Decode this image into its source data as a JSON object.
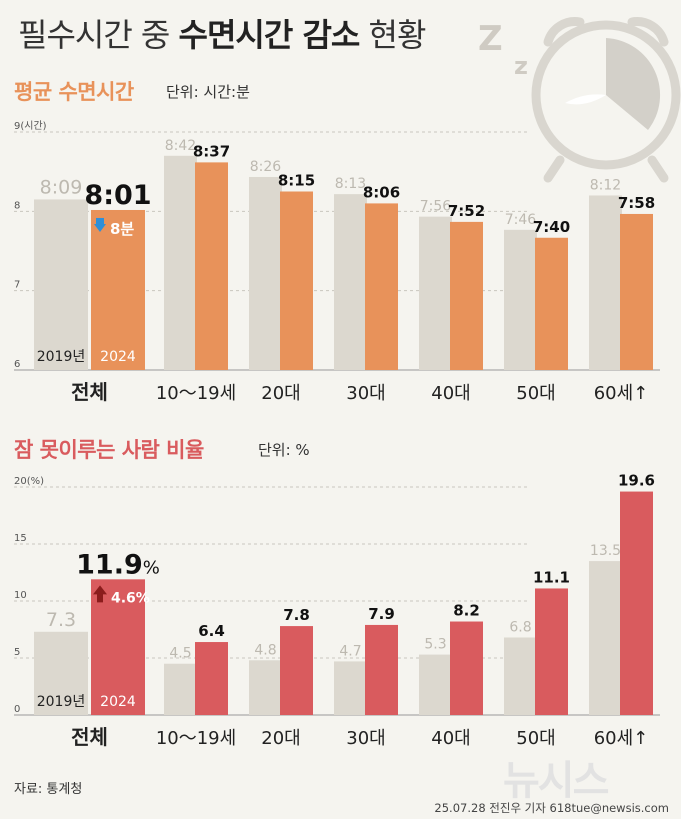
{
  "title_normal_1": "필수시간 중 ",
  "title_bold": "수면시간 감소",
  "title_normal_2": " 현황",
  "sleep": {
    "heading": "평균 수면시간",
    "unit": "단위: 시간:분",
    "color": "#e8925a",
    "change_label": "8분",
    "change_color": "#2f8fd8"
  },
  "insomnia": {
    "heading": "잠 못이루는 사람 비율",
    "unit": "단위: %",
    "color": "#d95b5e",
    "change_label": "4.6%",
    "change_color": "#8b1c1c"
  },
  "colors": {
    "gray": "#dcd8cf",
    "gray_label": "#bdb9b0"
  },
  "legend_2019": "2019년",
  "legend_2024": "2024",
  "source": "자료: 통계청",
  "credit": "25.07.28 전진우 기자 618tue@newsis.com",
  "logo_text": "뉴시스",
  "chart_data": [
    {
      "type": "bar",
      "title": "평균 수면시간",
      "unit": "시간:분",
      "categories": [
        "전체",
        "10～19세",
        "20대",
        "30대",
        "40대",
        "50대",
        "60세↑"
      ],
      "series": [
        {
          "name": "2019년",
          "values": [
            "8:09",
            "8:42",
            "8:26",
            "8:13",
            "7:56",
            "7:46",
            "8:12"
          ],
          "values_hours": [
            8.15,
            8.7,
            8.433,
            8.217,
            7.933,
            7.767,
            8.2
          ]
        },
        {
          "name": "2024",
          "values": [
            "8:01",
            "8:37",
            "8:15",
            "8:06",
            "7:52",
            "7:40",
            "7:58"
          ],
          "values_hours": [
            8.017,
            8.617,
            8.25,
            8.1,
            7.867,
            7.667,
            7.967
          ]
        }
      ],
      "ylim": [
        6,
        9
      ],
      "yticks": [
        "6",
        "7",
        "8",
        "9(시간)"
      ],
      "grid": true
    },
    {
      "type": "bar",
      "title": "잠 못이루는 사람 비율",
      "unit": "%",
      "categories": [
        "전체",
        "10～19세",
        "20대",
        "30대",
        "40대",
        "50대",
        "60세↑"
      ],
      "series": [
        {
          "name": "2019년",
          "values": [
            7.3,
            4.5,
            4.8,
            4.7,
            5.3,
            6.8,
            13.5
          ]
        },
        {
          "name": "2024",
          "values": [
            11.9,
            6.4,
            7.8,
            7.9,
            8.2,
            11.1,
            19.6
          ]
        }
      ],
      "ylim": [
        0,
        20
      ],
      "yticks": [
        "0",
        "5",
        "10",
        "15",
        "20(%)"
      ],
      "grid": true
    }
  ]
}
